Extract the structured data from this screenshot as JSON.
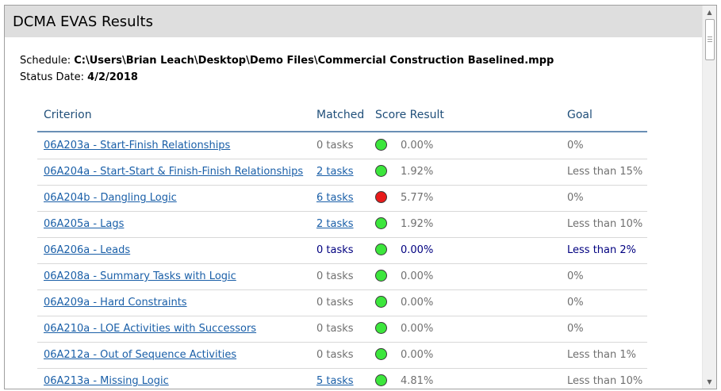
{
  "title": "DCMA EVAS Results",
  "info": {
    "schedule_label": "Schedule:",
    "schedule_value": "C:\\Users\\Brian Leach\\Desktop\\Demo Files\\Commercial Construction Baselined.mpp",
    "status_label": "Status Date:",
    "status_value": "4/2/2018"
  },
  "colors": {
    "pass": "#3ce63c",
    "fail": "#e81a1a",
    "link": "#1a5fa8"
  },
  "table": {
    "headers": {
      "criterion": "Criterion",
      "matched": "Matched",
      "score": "Score Result",
      "goal": "Goal"
    },
    "rows": [
      {
        "criterion": "06A203a - Start-Finish Relationships",
        "matched": "0 tasks",
        "status": "pass",
        "score": "0.00%",
        "goal": "0%"
      },
      {
        "criterion": "06A204a - Start-Start & Finish-Finish Relationships",
        "matched": "2 tasks",
        "status": "pass",
        "score": "1.92%",
        "goal": "Less than 15%"
      },
      {
        "criterion": "06A204b - Dangling Logic",
        "matched": "6 tasks",
        "status": "fail",
        "score": "5.77%",
        "goal": "0%"
      },
      {
        "criterion": "06A205a - Lags",
        "matched": "2 tasks",
        "status": "pass",
        "score": "1.92%",
        "goal": "Less than 10%"
      },
      {
        "criterion": "06A206a - Leads",
        "matched": "0 tasks",
        "status": "pass",
        "score": "0.00%",
        "goal": "Less than 2%"
      },
      {
        "criterion": "06A208a - Summary Tasks with Logic",
        "matched": "0 tasks",
        "status": "pass",
        "score": "0.00%",
        "goal": "0%"
      },
      {
        "criterion": "06A209a - Hard Constraints",
        "matched": "0 tasks",
        "status": "pass",
        "score": "0.00%",
        "goal": "0%"
      },
      {
        "criterion": "06A210a - LOE Activities with Successors",
        "matched": "0 tasks",
        "status": "pass",
        "score": "0.00%",
        "goal": "0%"
      },
      {
        "criterion": "06A212a - Out of Sequence Activities",
        "matched": "0 tasks",
        "status": "pass",
        "score": "0.00%",
        "goal": "Less than 1%"
      },
      {
        "criterion": "06A213a - Missing Logic",
        "matched": "5 tasks",
        "status": "pass",
        "score": "4.81%",
        "goal": "Less than 10%"
      }
    ]
  }
}
